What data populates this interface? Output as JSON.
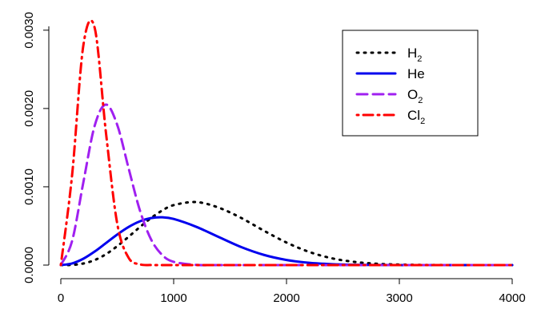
{
  "chart_data": {
    "type": "line",
    "title": "",
    "xlabel": "",
    "ylabel": "",
    "xlim": [
      0,
      4000
    ],
    "ylim": [
      0,
      0.0031
    ],
    "x_ticks": [
      0,
      1000,
      2000,
      3000,
      4000
    ],
    "x_tick_labels": [
      "0",
      "1000",
      "2000",
      "3000",
      "4000"
    ],
    "y_ticks": [
      0,
      0.001,
      0.002,
      0.003
    ],
    "y_tick_labels": [
      "0.0000",
      "0.0010",
      "0.0020",
      "0.0030"
    ],
    "grid": false,
    "legend_position": "top-right",
    "x": [
      0,
      100,
      200,
      300,
      400,
      500,
      600,
      700,
      800,
      900,
      1000,
      1200,
      1400,
      1600,
      1800,
      2000,
      2200,
      2400,
      2600,
      2800,
      3000,
      3200,
      3400,
      3600,
      3800,
      4000
    ],
    "series": [
      {
        "name": "H",
        "name_subscript": "2",
        "color": "#000000",
        "dash": "dotted",
        "values": [
          0,
          2.6e-06,
          2.02e-05,
          6.41e-05,
          0.000139,
          0.000242,
          0.000361,
          0.000485,
          0.000601,
          0.000698,
          0.000766,
          0.000805,
          0.000733,
          0.000601,
          0.000439,
          0.000288,
          0.000169,
          8.74e-05,
          4.1e-05,
          1.67e-05,
          6.3e-06,
          2e-06,
          6e-07,
          2e-07,
          0,
          0
        ]
      },
      {
        "name": "He",
        "color": "#0000ee",
        "dash": "solid",
        "values": [
          0,
          2.12e-05,
          8.16e-05,
          0.000173,
          0.000281,
          0.00039,
          0.000486,
          0.000558,
          0.0006,
          0.00061,
          0.000589,
          0.000489,
          0.000358,
          0.000229,
          0.00013,
          6.54e-05,
          2.95e-05,
          1.19e-05,
          4.2e-06,
          1.4e-06,
          4e-07,
          1e-07,
          0,
          0,
          0,
          0
        ]
      },
      {
        "name": "O",
        "name_subscript": "2",
        "color": "#a020f0",
        "dash": "dashed",
        "values": [
          0,
          0.000308,
          0.00106,
          0.00178,
          0.00205,
          0.00179,
          0.00124,
          0.000702,
          0.000327,
          0.000127,
          4.14e-05,
          2.5e-06,
          1e-07,
          0,
          0,
          0,
          0,
          0,
          0,
          0,
          0,
          0,
          0,
          0,
          0,
          0
        ]
      },
      {
        "name": "Cl",
        "name_subscript": "2",
        "color": "#ff0000",
        "dash": "dashdot",
        "values": [
          0,
          0.00115,
          0.00281,
          0.00303,
          0.00169,
          0.000528,
          9.51e-05,
          1.01e-05,
          6e-07,
          0,
          0,
          0,
          0,
          0,
          0,
          0,
          0,
          0,
          0,
          0,
          0,
          0,
          0,
          0,
          0,
          0
        ]
      }
    ]
  }
}
